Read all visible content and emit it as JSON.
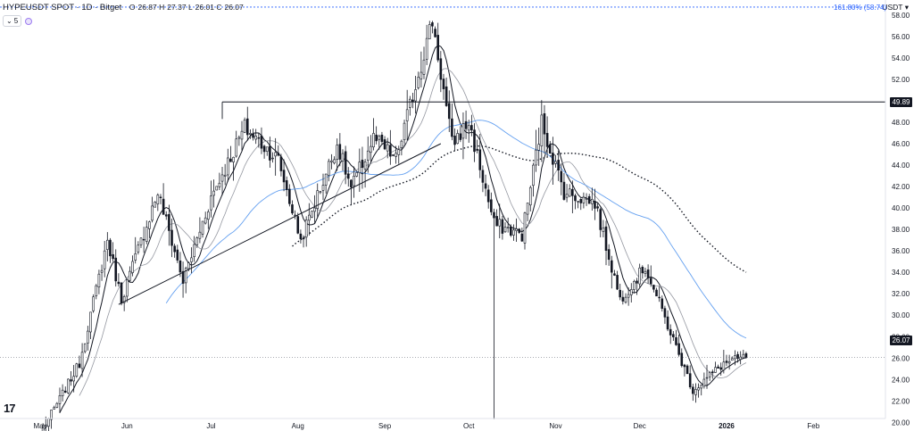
{
  "header": {
    "symbol": "HYPEUSDT SPOT · 1D · Bitget",
    "o_label": "O",
    "o": "26.87",
    "h_label": "H",
    "h": "27.37",
    "l_label": "L",
    "l": "26.01",
    "c_label": "C",
    "c": "26.07",
    "indicator_count": "5",
    "currency": "USDT"
  },
  "fib_label": "161.80% (58.74)",
  "tags": {
    "level": "49.89",
    "last": "26.07"
  },
  "colors": {
    "up": "#131722",
    "down": "#131722",
    "blue_ma": "#64a0f0",
    "fib": "#2962ff"
  },
  "chart_data": {
    "type": "candlestick",
    "symbol": "HYPEUSDT",
    "timeframe": "1D",
    "y_axis": {
      "min": 19.2,
      "max": 59.4,
      "ticks": [
        20.0,
        22.0,
        24.0,
        26.0,
        28.0,
        30.0,
        32.0,
        34.0,
        36.0,
        38.0,
        40.0,
        42.0,
        44.0,
        46.0,
        48.0,
        50.0,
        52.0,
        54.0,
        56.0,
        58.0
      ]
    },
    "x_axis": {
      "labels": [
        "May",
        "Jun",
        "Jul",
        "Aug",
        "Sep",
        "Oct",
        "Nov",
        "Dec",
        "2026",
        "Feb"
      ],
      "start_date": "2025-05-02",
      "end_date": "2026-02-19"
    },
    "key_points": [
      [
        "2025-05-02",
        19.4
      ],
      [
        "2025-05-15",
        25.5
      ],
      [
        "2025-05-25",
        37.0
      ],
      [
        "2025-05-30",
        31.5
      ],
      [
        "2025-06-12",
        41.5
      ],
      [
        "2025-06-21",
        33.2
      ],
      [
        "2025-07-01",
        41.0
      ],
      [
        "2025-07-13",
        47.5
      ],
      [
        "2025-07-25",
        44.5
      ],
      [
        "2025-08-02",
        37.0
      ],
      [
        "2025-08-15",
        46.0
      ],
      [
        "2025-08-20",
        41.8
      ],
      [
        "2025-08-28",
        46.5
      ],
      [
        "2025-09-05",
        44.5
      ],
      [
        "2025-09-18",
        57.5
      ],
      [
        "2025-09-25",
        46.0
      ],
      [
        "2025-10-01",
        48.0
      ],
      [
        "2025-10-10",
        38.5
      ],
      [
        "2025-10-20",
        37.5
      ],
      [
        "2025-10-27",
        48.0
      ],
      [
        "2025-11-04",
        41.5
      ],
      [
        "2025-11-15",
        40.5
      ],
      [
        "2025-11-24",
        31.5
      ],
      [
        "2025-12-03",
        34.5
      ],
      [
        "2025-12-14",
        27.0
      ],
      [
        "2025-12-20",
        23.0
      ],
      [
        "2025-12-31",
        25.5
      ],
      [
        "2026-01-08",
        26.07
      ]
    ],
    "last_close": 26.07,
    "horizontal_levels": [
      49.89,
      58.74
    ],
    "fib_extension": {
      "ratio": "161.80%",
      "price": 58.74
    },
    "annotations": [
      "ascending trendline 2025-05-29 → 2025-09-21",
      "horizontal line 49.89 from 2025-07-05",
      "dotted price line 26.07"
    ],
    "moving_averages": [
      "fast black",
      "slow gray",
      "blue long",
      "dotted 200"
    ]
  }
}
